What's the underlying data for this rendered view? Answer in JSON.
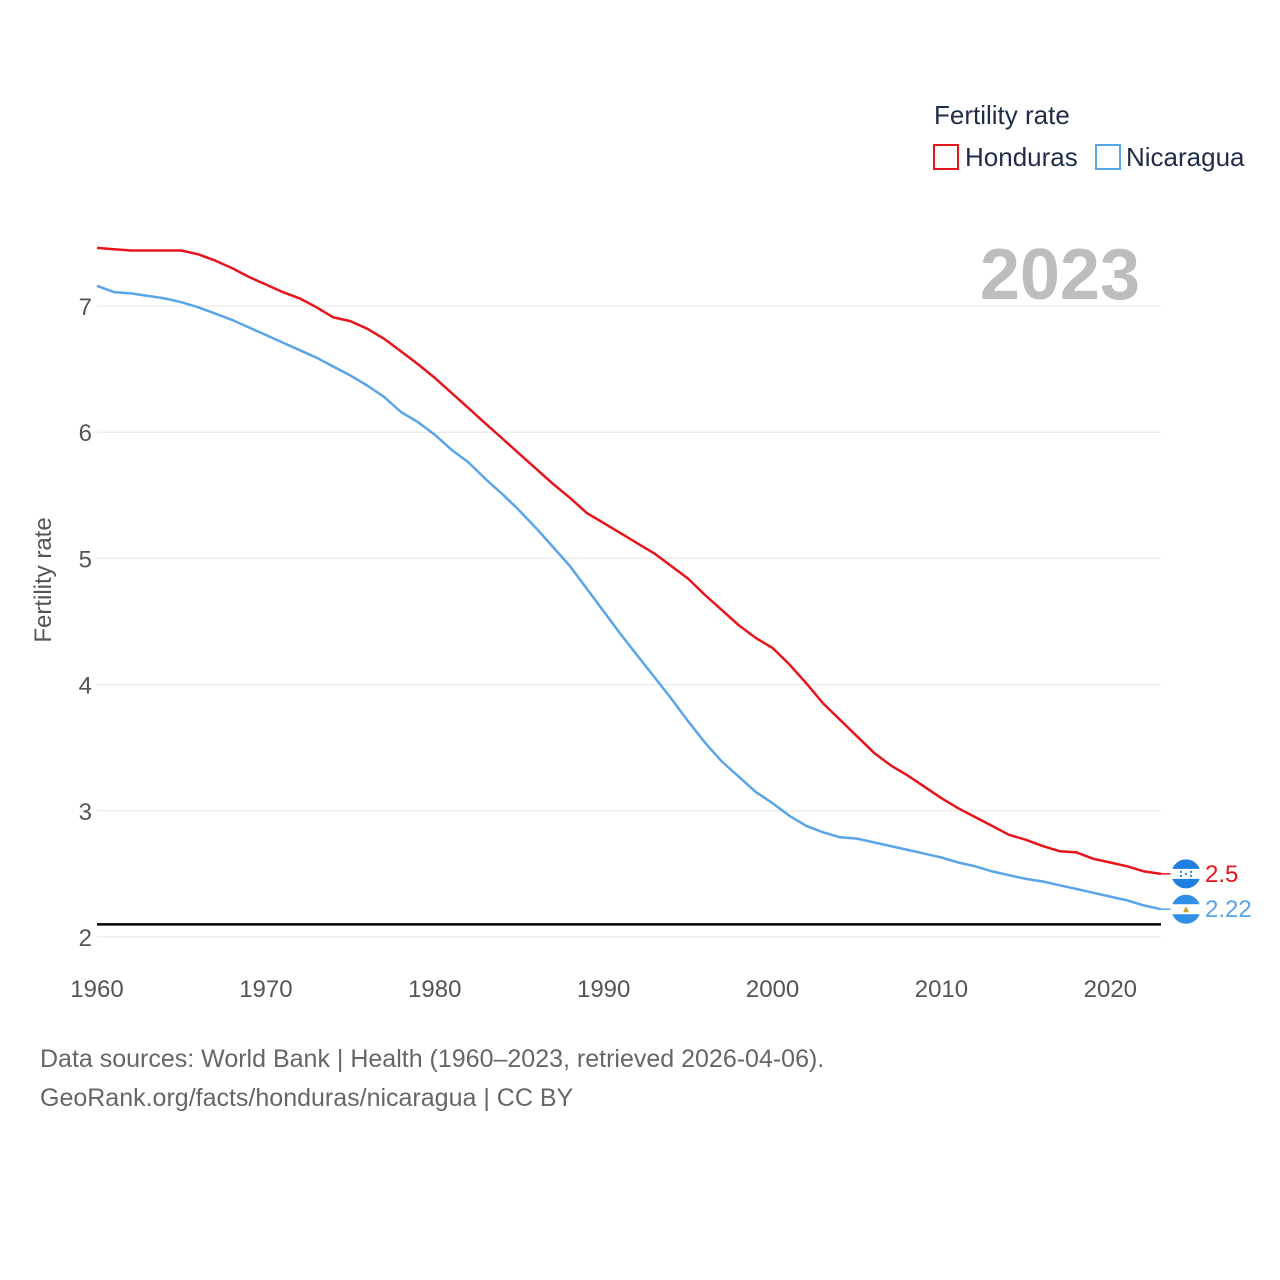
{
  "chart_data": {
    "type": "line",
    "title": "2023",
    "ylabel": "Fertility rate",
    "xlabel": "",
    "xlim": [
      1960,
      2023
    ],
    "ylim": [
      2,
      7.5
    ],
    "x_ticks": [
      1960,
      1970,
      1980,
      1990,
      2000,
      2010,
      2020
    ],
    "y_ticks": [
      2,
      3,
      4,
      5,
      6,
      7
    ],
    "reference_line": 2.1,
    "legend": {
      "title": "Fertility rate",
      "position": "top-right"
    },
    "x": [
      1960,
      1961,
      1962,
      1963,
      1964,
      1965,
      1966,
      1967,
      1968,
      1969,
      1970,
      1971,
      1972,
      1973,
      1974,
      1975,
      1976,
      1977,
      1978,
      1979,
      1980,
      1981,
      1982,
      1983,
      1984,
      1985,
      1986,
      1987,
      1988,
      1989,
      1990,
      1991,
      1992,
      1993,
      1994,
      1995,
      1996,
      1997,
      1998,
      1999,
      2000,
      2001,
      2002,
      2003,
      2004,
      2005,
      2006,
      2007,
      2008,
      2009,
      2010,
      2011,
      2012,
      2013,
      2014,
      2015,
      2016,
      2017,
      2018,
      2019,
      2020,
      2021,
      2022,
      2023
    ],
    "series": [
      {
        "name": "Honduras",
        "color": "#e8141b",
        "end_label": "2.5",
        "values": [
          7.46,
          7.45,
          7.44,
          7.44,
          7.44,
          7.44,
          7.41,
          7.36,
          7.3,
          7.23,
          7.17,
          7.11,
          7.06,
          6.99,
          6.91,
          6.88,
          6.82,
          6.74,
          6.64,
          6.54,
          6.43,
          6.31,
          6.19,
          6.07,
          5.95,
          5.83,
          5.71,
          5.59,
          5.48,
          5.36,
          5.28,
          5.2,
          5.12,
          5.04,
          4.94,
          4.84,
          4.71,
          4.59,
          4.47,
          4.37,
          4.29,
          4.16,
          4.01,
          3.85,
          3.72,
          3.59,
          3.46,
          3.36,
          3.28,
          3.19,
          3.1,
          3.02,
          2.95,
          2.88,
          2.81,
          2.77,
          2.72,
          2.68,
          2.67,
          2.62,
          2.59,
          2.56,
          2.52,
          2.5
        ]
      },
      {
        "name": "Nicaragua",
        "color": "#5aa5e8",
        "end_label": "2.22",
        "values": [
          7.16,
          7.11,
          7.1,
          7.08,
          7.06,
          7.03,
          6.99,
          6.94,
          6.89,
          6.83,
          6.77,
          6.71,
          6.65,
          6.59,
          6.52,
          6.45,
          6.37,
          6.28,
          6.16,
          6.08,
          5.98,
          5.86,
          5.76,
          5.63,
          5.51,
          5.38,
          5.24,
          5.09,
          4.94,
          4.76,
          4.58,
          4.4,
          4.23,
          4.06,
          3.89,
          3.71,
          3.54,
          3.39,
          3.27,
          3.15,
          3.06,
          2.96,
          2.88,
          2.83,
          2.79,
          2.78,
          2.75,
          2.72,
          2.69,
          2.66,
          2.63,
          2.59,
          2.56,
          2.52,
          2.49,
          2.46,
          2.44,
          2.41,
          2.38,
          2.35,
          2.32,
          2.29,
          2.25,
          2.22
        ]
      }
    ]
  },
  "footer": {
    "line1": "Data sources: World Bank | Health (1960–2023, retrieved 2026-04-06).",
    "line2": "GeoRank.org/facts/honduras/nicaragua | CC BY"
  },
  "icons": {
    "honduras": "honduras-flag-icon",
    "nicaragua": "nicaragua-flag-icon"
  }
}
